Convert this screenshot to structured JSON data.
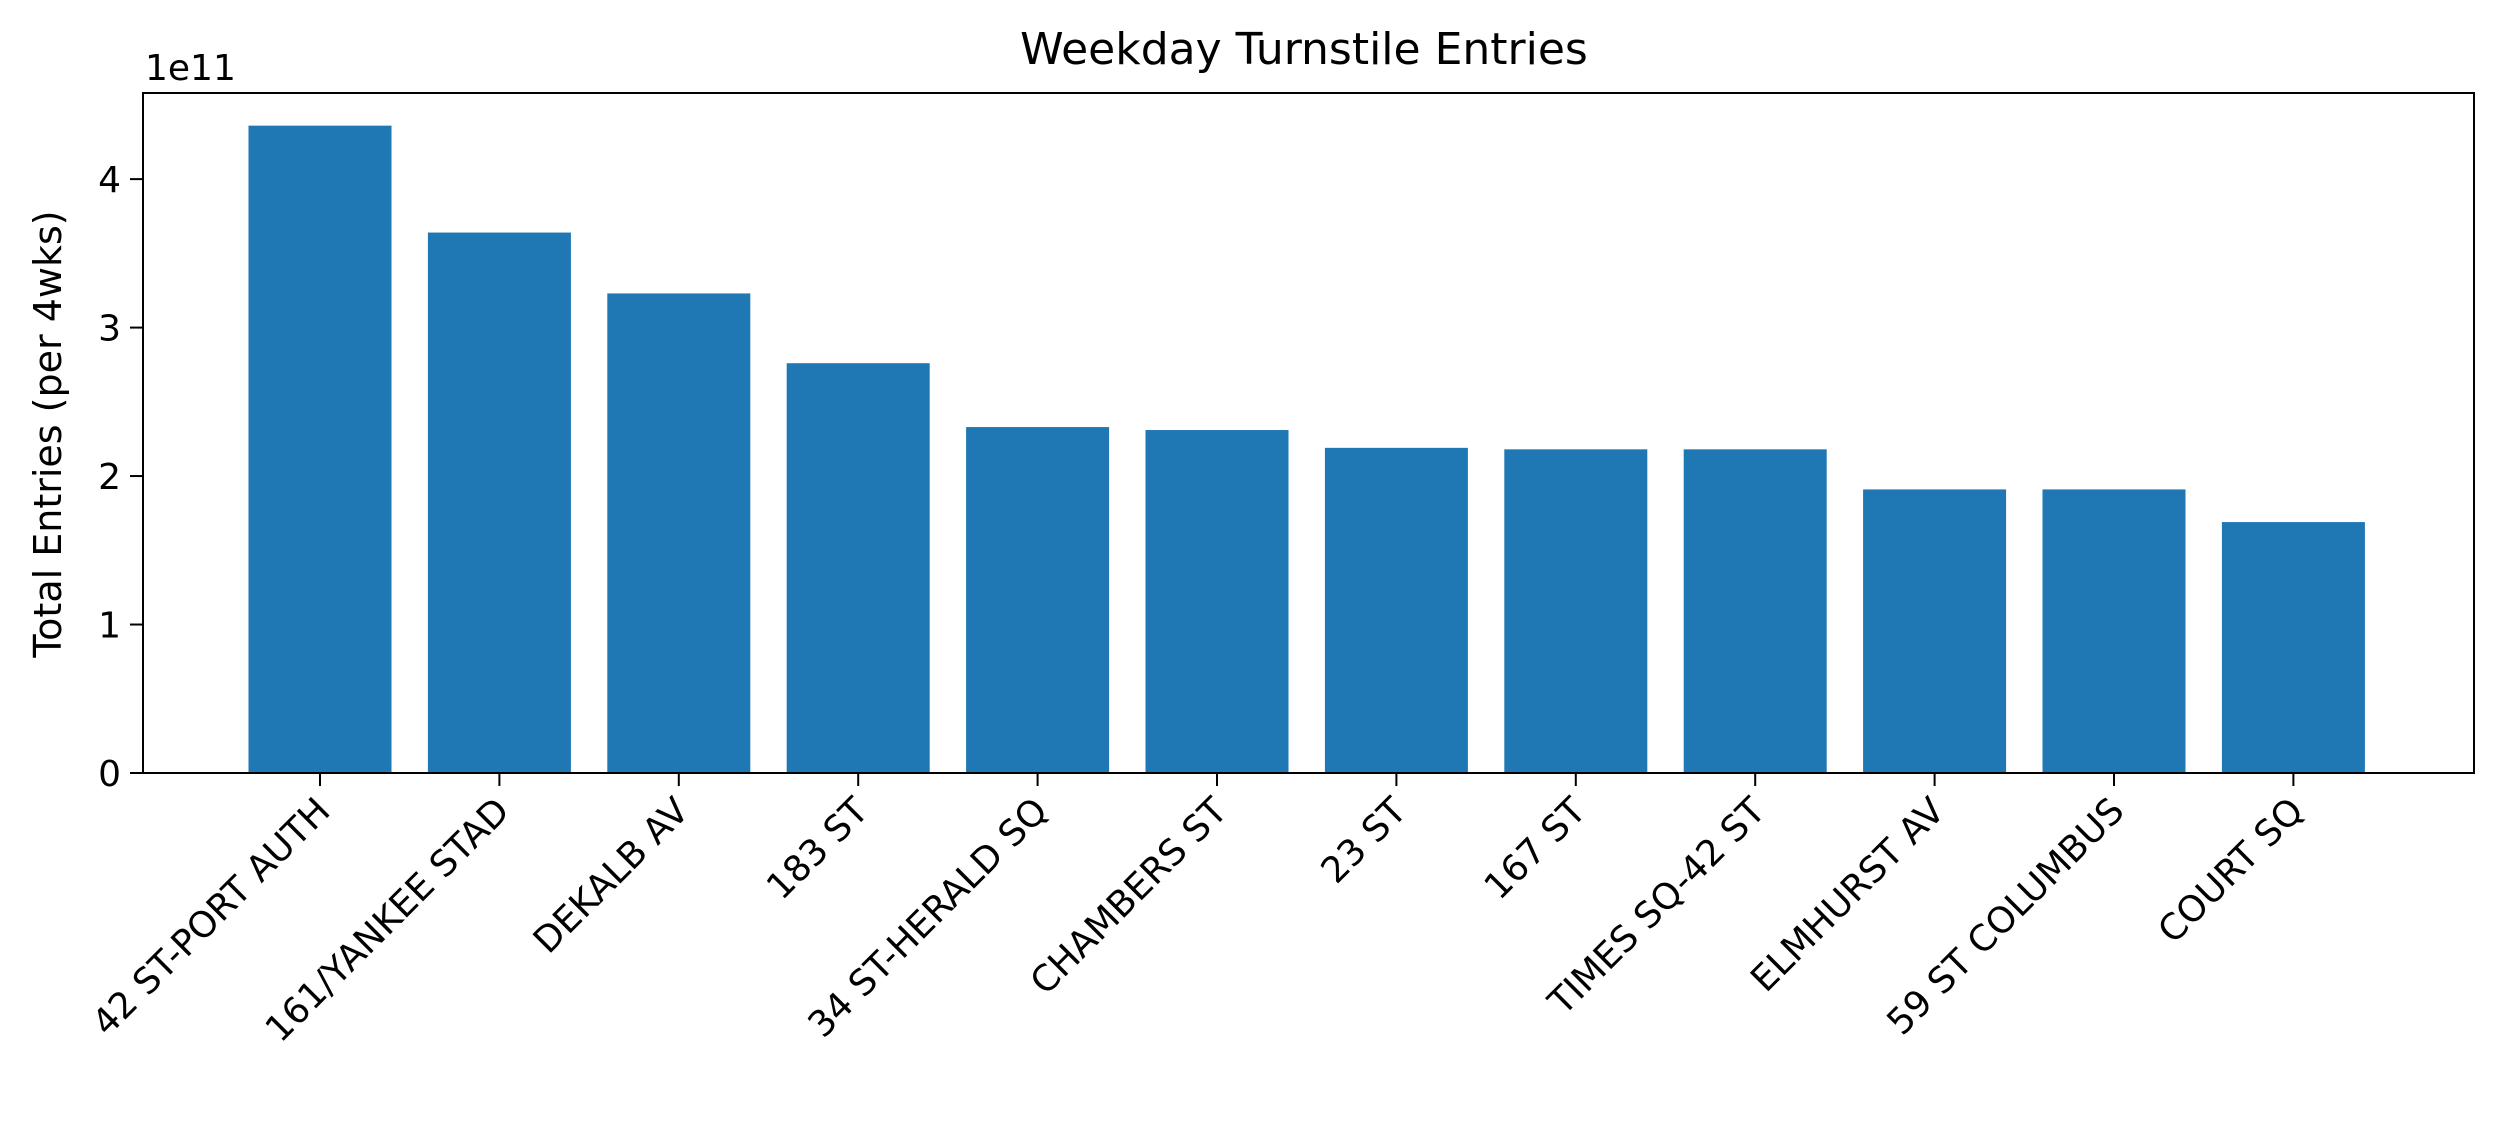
{
  "chart_data": {
    "type": "bar",
    "title": "Weekday Turnstile Entries",
    "xlabel": "",
    "ylabel": "Total Entries (per 4wks)",
    "y_offset_label": "1e11",
    "ylim": [
      0,
      4.58
    ],
    "y_scale_factor": 100000000000,
    "y_ticks": [
      0,
      1,
      2,
      3,
      4
    ],
    "y_tick_labels": [
      "0",
      "1",
      "2",
      "3",
      "4"
    ],
    "grid": false,
    "legend": "none",
    "bar_color": "#1f77b4",
    "categories": [
      "42 ST-PORT AUTH",
      "161/YANKEE STAD",
      "DEKALB AV",
      "183 ST",
      "34 ST-HERALD SQ",
      "CHAMBERS ST",
      "23 ST",
      "167 ST",
      "TIMES SQ-42 ST",
      "ELMHURST AV",
      "59 ST COLUMBUS",
      "COURT SQ"
    ],
    "values": [
      4.36,
      3.64,
      3.23,
      2.76,
      2.33,
      2.31,
      2.19,
      2.18,
      2.18,
      1.91,
      1.91,
      1.69
    ]
  }
}
